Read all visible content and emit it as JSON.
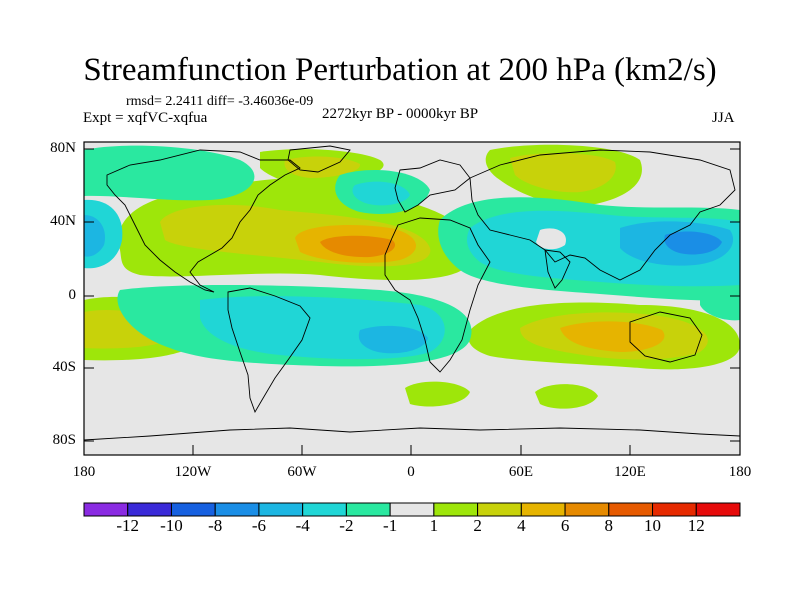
{
  "title": "Streamfunction Perturbation at 200 hPa (km2/s)",
  "stats_line": "rmsd= 2.2411 diff= -3.46036e-09",
  "experiment": "Expt = xqfVC-xqfua",
  "period": "2272kyr BP - 0000kyr BP",
  "season": "JJA",
  "lat_labels": [
    "80N",
    "40N",
    "0",
    "40S",
    "80S"
  ],
  "lon_labels": [
    "180",
    "120W",
    "60W",
    "0",
    "60E",
    "120E",
    "180"
  ],
  "colorbar": {
    "labels": [
      "-12",
      "-10",
      "-8",
      "-6",
      "-4",
      "-2",
      "-1",
      "1",
      "2",
      "4",
      "6",
      "8",
      "10",
      "12"
    ],
    "colors": [
      "#8a2be2",
      "#3a2ad8",
      "#1660e0",
      "#1a8ee6",
      "#1cb6e2",
      "#20d6d6",
      "#2ae8a0",
      "#e6e6e6",
      "#9ee60a",
      "#c8d20a",
      "#e6b400",
      "#e68a00",
      "#e65a00",
      "#e62a00",
      "#e60a0a"
    ]
  },
  "colors": {
    "background": "#e6e6e6",
    "coast": "#000000"
  }
}
